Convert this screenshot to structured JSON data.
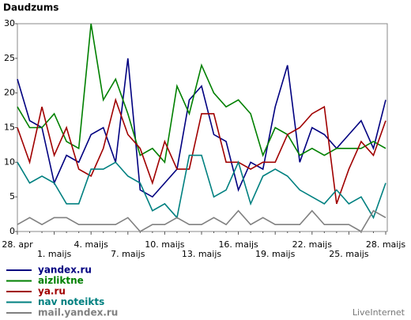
{
  "chart_data": {
    "type": "line",
    "ylabel": "Daudzums",
    "watermark": "LiveInternet",
    "categories": [
      "28. apr",
      null,
      null,
      "1. maijs",
      null,
      null,
      "4. maijs",
      null,
      null,
      "7. maijs",
      null,
      null,
      "10. maijs",
      null,
      null,
      "13. maijs",
      null,
      null,
      "16. maijs",
      null,
      null,
      "19. maijs",
      null,
      null,
      "22. maijs",
      null,
      null,
      "25. maijs",
      null,
      null,
      "28. maijs"
    ],
    "ylim": [
      0,
      30
    ],
    "yticks": [
      0,
      5,
      10,
      15,
      20,
      25,
      30
    ],
    "legend": "bottom",
    "series": [
      {
        "name": "yandex.ru",
        "color": "#000080",
        "values": [
          22,
          16,
          15,
          7,
          11,
          10,
          14,
          15,
          10,
          25,
          6,
          5,
          7,
          9,
          19,
          21,
          14,
          13,
          6,
          10,
          9,
          18,
          24,
          10,
          15,
          14,
          12,
          14,
          16,
          12,
          19
        ]
      },
      {
        "name": "aizliktne",
        "color": "#008000",
        "values": [
          18,
          15,
          15,
          17,
          13,
          12,
          30,
          19,
          22,
          17,
          11,
          12,
          10,
          21,
          17,
          24,
          20,
          18,
          19,
          17,
          11,
          15,
          14,
          11,
          12,
          11,
          12,
          12,
          12,
          13,
          12
        ]
      },
      {
        "name": "ya.ru",
        "color": "#a00000",
        "values": [
          15,
          10,
          18,
          11,
          15,
          9,
          8,
          12,
          19,
          14,
          12,
          7,
          13,
          9,
          9,
          17,
          17,
          10,
          10,
          9,
          10,
          10,
          14,
          15,
          17,
          18,
          4,
          9,
          13,
          11,
          16
        ]
      },
      {
        "name": "nav noteikts",
        "color": "#008080",
        "values": [
          10,
          7,
          8,
          7,
          4,
          4,
          9,
          9,
          10,
          8,
          7,
          3,
          4,
          2,
          11,
          11,
          5,
          6,
          10,
          4,
          8,
          9,
          8,
          6,
          5,
          4,
          6,
          4,
          5,
          2,
          7
        ]
      },
      {
        "name": "mail.yandex.ru",
        "color": "#808080",
        "values": [
          1,
          2,
          1,
          2,
          2,
          1,
          1,
          1,
          1,
          2,
          0,
          1,
          1,
          2,
          1,
          1,
          2,
          1,
          3,
          1,
          2,
          1,
          1,
          1,
          3,
          1,
          1,
          1,
          0,
          3,
          2
        ]
      }
    ]
  }
}
